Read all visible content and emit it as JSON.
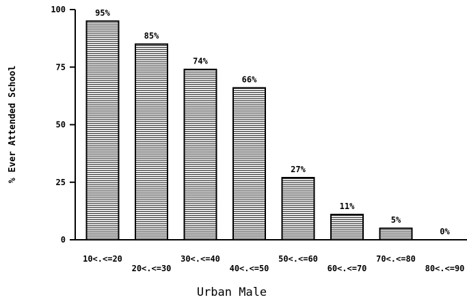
{
  "chart_data": {
    "type": "bar",
    "categories": [
      "10<.<=20",
      "20<.<=30",
      "30<.<=40",
      "40<.<=50",
      "50<.<=60",
      "60<.<=70",
      "70<.<=80",
      "80<.<=90"
    ],
    "values": [
      95,
      85,
      74,
      66,
      27,
      11,
      5,
      0
    ],
    "value_labels": [
      "95%",
      "85%",
      "74%",
      "66%",
      "27%",
      "11%",
      "5%",
      "0%"
    ],
    "yticks": [
      "0",
      "25",
      "50",
      "75",
      "100"
    ],
    "ytick_values": [
      0,
      25,
      50,
      75,
      100
    ],
    "ylim": [
      0,
      100
    ],
    "ylabel": "% Ever Attended School",
    "xlabel": "Urban Male",
    "bar_fill": "#e6e6e6",
    "bar_stripe": "#222222",
    "grid": false,
    "legend": "none"
  }
}
